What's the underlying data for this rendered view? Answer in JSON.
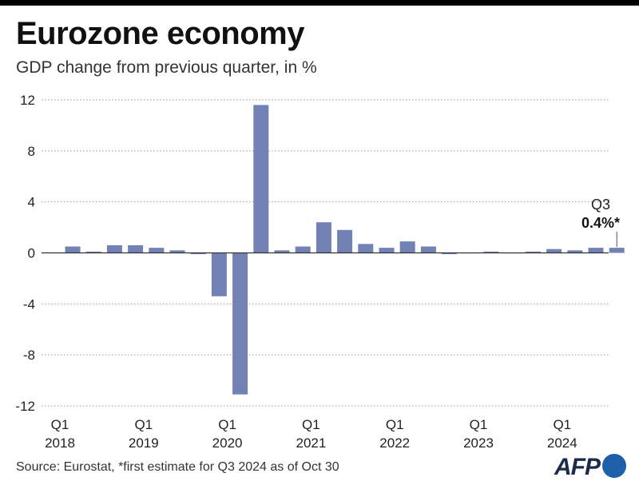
{
  "header": {
    "title": "Eurozone economy",
    "subtitle": "GDP change from previous quarter, in %"
  },
  "footer": {
    "source": "Source: Eurostat, *first estimate for Q3 2024 as of Oct 30",
    "logo": "AFP"
  },
  "colors": {
    "bar": "#7282b4",
    "grid": "#9a9a9a",
    "zero_line": "#333333",
    "text": "#222222"
  },
  "chart_data": {
    "type": "bar",
    "title": "Eurozone economy",
    "subtitle": "GDP change from previous quarter, in %",
    "categories": [
      "Q1 2018",
      "Q2 2018",
      "Q3 2018",
      "Q4 2018",
      "Q1 2019",
      "Q2 2019",
      "Q3 2019",
      "Q4 2019",
      "Q1 2020",
      "Q2 2020",
      "Q3 2020",
      "Q4 2020",
      "Q1 2021",
      "Q2 2021",
      "Q3 2021",
      "Q4 2021",
      "Q1 2022",
      "Q2 2022",
      "Q3 2022",
      "Q4 2022",
      "Q1 2023",
      "Q2 2023",
      "Q3 2023",
      "Q4 2023",
      "Q1 2024",
      "Q2 2024",
      "Q3 2024"
    ],
    "values": [
      0.5,
      0.1,
      0.6,
      0.6,
      0.4,
      0.2,
      -0.1,
      -3.4,
      -11.1,
      11.6,
      0.2,
      0.5,
      2.4,
      1.8,
      0.7,
      0.4,
      0.9,
      0.5,
      -0.1,
      0.0,
      0.1,
      0.0,
      0.1,
      0.3,
      0.2,
      0.4,
      0.4
    ],
    "ylim": [
      -12,
      12
    ],
    "yticks": [
      12,
      8,
      4,
      0,
      -4,
      -8,
      -12
    ],
    "ytick_labels": [
      "12",
      "8",
      "4",
      "0",
      "-4",
      "-8",
      "-12"
    ],
    "xtick_labels": [
      {
        "q": "Q1",
        "year": "2018",
        "index": 0
      },
      {
        "q": "Q1",
        "year": "2019",
        "index": 4
      },
      {
        "q": "Q1",
        "year": "2020",
        "index": 8
      },
      {
        "q": "Q1",
        "year": "2021",
        "index": 12
      },
      {
        "q": "Q1",
        "year": "2022",
        "index": 16
      },
      {
        "q": "Q1",
        "year": "2023",
        "index": 20
      },
      {
        "q": "Q1",
        "year": "2024",
        "index": 24
      }
    ],
    "annotation": {
      "label": "Q3",
      "value_label": "0.4%*",
      "index": 26
    },
    "grid": true,
    "legend": "none",
    "xlabel": "",
    "ylabel": ""
  }
}
